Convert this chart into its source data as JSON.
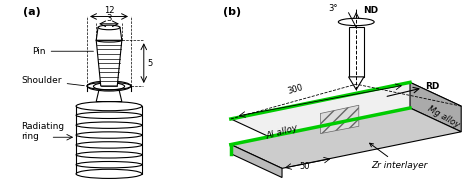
{
  "fig_width": 4.74,
  "fig_height": 1.83,
  "dpi": 100,
  "bg_color": "#ffffff",
  "panel_a_label": "(a)",
  "panel_b_label": "(b)",
  "dim_12": "12",
  "dim_3": "3",
  "dim_5": "5",
  "dim_300": "300",
  "dim_50": "50",
  "dim_3deg": "3°",
  "label_pin": "Pin",
  "label_shoulder": "Shoulder",
  "label_ring": "Radiating\nring",
  "label_nd": "ND",
  "label_rd": "RD",
  "label_al": "Al alloy",
  "label_mg": "Mg alloy",
  "label_zr": "Zr interlayer",
  "green_color": "#00cc00",
  "gray_color": "#aaaaaa",
  "dark_gray": "#555555",
  "line_color": "#000000",
  "hatch_color": "#888888"
}
